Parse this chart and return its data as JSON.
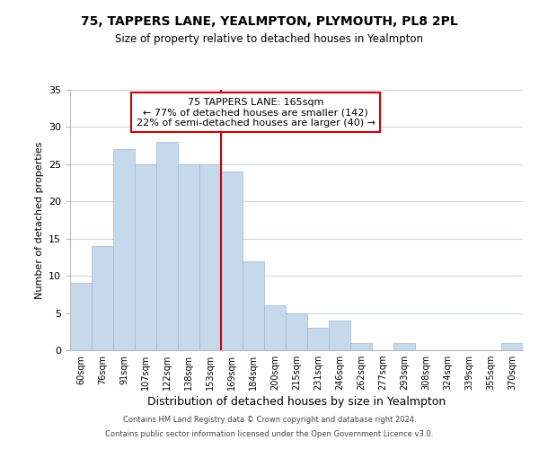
{
  "title": "75, TAPPERS LANE, YEALMPTON, PLYMOUTH, PL8 2PL",
  "subtitle": "Size of property relative to detached houses in Yealmpton",
  "xlabel": "Distribution of detached houses by size in Yealmpton",
  "ylabel": "Number of detached properties",
  "bar_labels": [
    "60sqm",
    "76sqm",
    "91sqm",
    "107sqm",
    "122sqm",
    "138sqm",
    "153sqm",
    "169sqm",
    "184sqm",
    "200sqm",
    "215sqm",
    "231sqm",
    "246sqm",
    "262sqm",
    "277sqm",
    "293sqm",
    "308sqm",
    "324sqm",
    "339sqm",
    "355sqm",
    "370sqm"
  ],
  "bar_values": [
    9,
    14,
    27,
    25,
    28,
    25,
    25,
    24,
    12,
    6,
    5,
    3,
    4,
    1,
    0,
    1,
    0,
    0,
    0,
    0,
    1
  ],
  "bar_color": "#c6d9ec",
  "bar_edge_color": "#a0b8cc",
  "highlight_line_index": 7,
  "highlight_line_color": "#cc0000",
  "ylim": [
    0,
    35
  ],
  "yticks": [
    0,
    5,
    10,
    15,
    20,
    25,
    30,
    35
  ],
  "annotation_line1": "75 TAPPERS LANE: 165sqm",
  "annotation_line2": "← 77% of detached houses are smaller (142)",
  "annotation_line3": "22% of semi-detached houses are larger (40) →",
  "annotation_box_edge": "#cc0000",
  "footer_line1": "Contains HM Land Registry data © Crown copyright and database right 2024.",
  "footer_line2": "Contains public sector information licensed under the Open Government Licence v3.0.",
  "background_color": "#ffffff",
  "grid_color": "#c8d8e8"
}
